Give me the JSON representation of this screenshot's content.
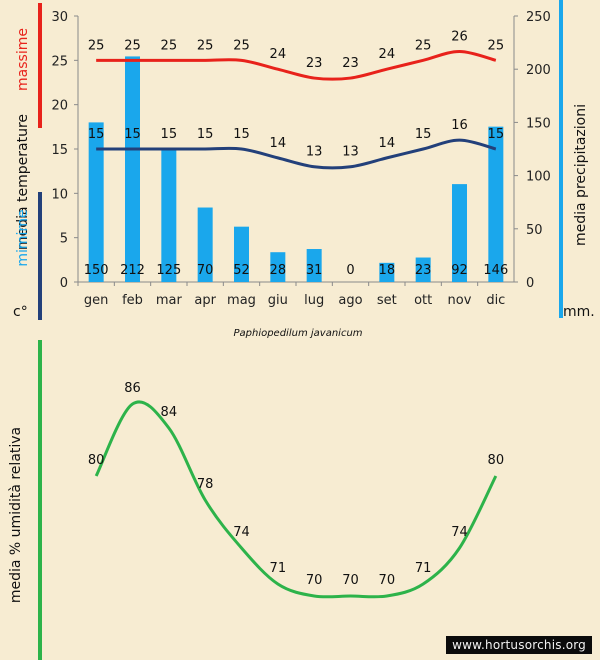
{
  "chart_data": [
    {
      "type": "line+bar",
      "caption": "Paphiopedilum javanicum",
      "categories": [
        "gen",
        "feb",
        "mar",
        "apr",
        "mag",
        "giu",
        "lug",
        "ago",
        "set",
        "ott",
        "nov",
        "dic"
      ],
      "left_axis": {
        "label_parts": [
          "media",
          "temperature"
        ],
        "label_max": "massime",
        "label_min": "mimime",
        "unit": "c°",
        "ylim": [
          0,
          30
        ],
        "ticks": [
          0,
          5,
          10,
          15,
          20,
          25,
          30
        ]
      },
      "right_axis": {
        "label": "media  precipitazioni",
        "unit": "mm.",
        "ylim": [
          0,
          250
        ],
        "ticks": [
          0,
          50,
          100,
          150,
          200,
          250
        ]
      },
      "series": [
        {
          "name": "massime",
          "kind": "line",
          "axis": "left",
          "color": "#e8221b",
          "values": [
            25,
            25,
            25,
            25,
            25,
            24,
            23,
            23,
            24,
            25,
            26,
            25
          ]
        },
        {
          "name": "mimime",
          "kind": "line",
          "axis": "left",
          "color": "#23407a",
          "values": [
            15,
            15,
            15,
            15,
            15,
            14,
            13,
            13,
            14,
            15,
            16,
            15
          ]
        },
        {
          "name": "media  precipitazioni",
          "kind": "bar",
          "axis": "right",
          "color": "#1aa7ec",
          "values": [
            150,
            212,
            125,
            70,
            52,
            28,
            31,
            0,
            18,
            23,
            92,
            146
          ]
        }
      ],
      "grid": false
    },
    {
      "type": "line",
      "categories": [
        "gen",
        "feb",
        "mar",
        "apr",
        "mag",
        "giu",
        "lug",
        "ago",
        "set",
        "ott",
        "nov",
        "dic"
      ],
      "ylabel": "media %  umidità relativa",
      "series": [
        {
          "name": "media %  umidità relativa",
          "color": "#2db34a",
          "values": [
            80,
            86,
            84,
            78,
            74,
            71,
            70,
            70,
            70,
            71,
            74,
            80
          ]
        }
      ],
      "grid": false
    }
  ],
  "watermark": "www.hortusorchis.org",
  "colors": {
    "background": "#f7ecd2",
    "max_temp": "#e8221b",
    "min_temp": "#23407a",
    "precip": "#1aa7ec",
    "humidity": "#2db34a"
  }
}
